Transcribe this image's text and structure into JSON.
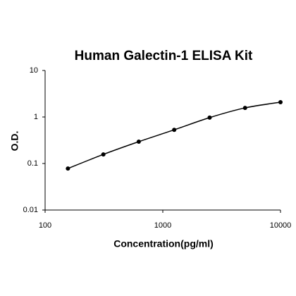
{
  "chart_data": {
    "type": "scatter",
    "title": "Human Galectin-1 ELISA Kit",
    "x_label": "Concentration(pg/ml)",
    "y_label": "O.D.",
    "x": [
      156.25,
      312.5,
      625,
      1250,
      2500,
      5000,
      10000
    ],
    "values": [
      0.078,
      0.157,
      0.295,
      0.53,
      0.97,
      1.57,
      2.08
    ],
    "color": "#000000",
    "curve": true,
    "xscale": "log",
    "yscale": "log",
    "xlim": [
      100,
      10000
    ],
    "xticks": [
      100,
      1000,
      10000
    ],
    "ylim": [
      0.01,
      10
    ],
    "yticks": [
      0.01,
      0.1,
      1,
      10
    ]
  }
}
